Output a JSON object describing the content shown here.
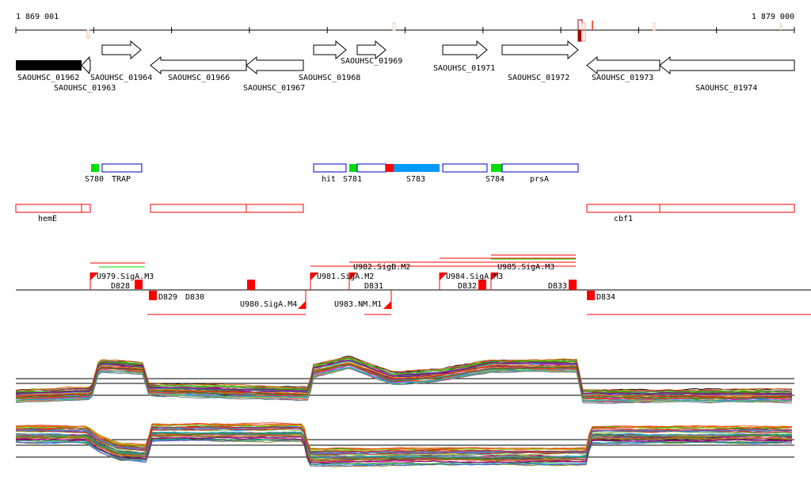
{
  "ruler": {
    "start_label": "1 869 001",
    "end_label": "1 879 000"
  },
  "genes": [
    {
      "name": "SAOUHSC_01962",
      "strand": "-",
      "filled": true
    },
    {
      "name": "SAOUHSC_01963",
      "strand": "-"
    },
    {
      "name": "SAOUHSC_01964",
      "strand": "+"
    },
    {
      "name": "SAOUHSC_01966",
      "strand": "-"
    },
    {
      "name": "SAOUHSC_01967",
      "strand": "-"
    },
    {
      "name": "SAOUHSC_01968",
      "strand": "+"
    },
    {
      "name": "SAOUHSC_01969",
      "strand": "+"
    },
    {
      "name": "SAOUHSC_01971",
      "strand": "+"
    },
    {
      "name": "SAOUHSC_01972",
      "strand": "+"
    },
    {
      "name": "SAOUHSC_01973",
      "strand": "-"
    },
    {
      "name": "SAOUHSC_01974",
      "strand": "-"
    }
  ],
  "features": [
    "S780",
    "TRAP",
    "hit",
    "S781",
    "S783",
    "S784",
    "prsA"
  ],
  "operons": [
    "hemE",
    "cbf1"
  ],
  "promoters_plus": [
    "U979.SigA.M3",
    "D828",
    "U981.SigA.M2",
    "U982.SigB.M2",
    "D831",
    "U984.SigA.M3",
    "D832",
    "U985.SigA.M3",
    "D833"
  ],
  "promoters_minus": [
    "D829",
    "D830",
    "U980.SigA.M4",
    "U983.NM.M1",
    "D834"
  ],
  "colors": {
    "sigA": "#ff0000",
    "sigB": "#00dd00",
    "feature_blue": "#0000cc",
    "feature_fill": "#0099ff"
  }
}
